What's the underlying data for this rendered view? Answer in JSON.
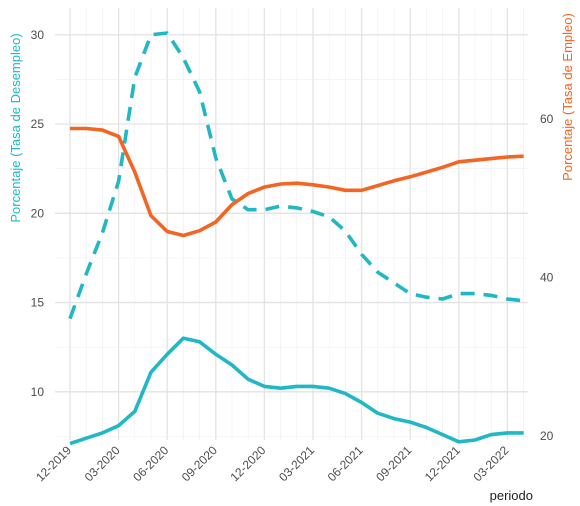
{
  "chart_data": {
    "type": "line",
    "xlabel": "periodo",
    "ylabel_left": "Porcentaje (Tasa de Desempleo)",
    "ylabel_right": "Porcentaje (Tasa de Empleo)",
    "x_ticks": [
      "12-2019",
      "03-2020",
      "06-2020",
      "09-2020",
      "12-2020",
      "03-2021",
      "06-2021",
      "09-2021",
      "12-2021",
      "03-2022"
    ],
    "y_left_ticks": [
      10,
      15,
      20,
      25,
      30
    ],
    "y_right_ticks": [
      20,
      40,
      60
    ],
    "ylim_left": [
      7.3,
      31.5
    ],
    "ylim_right": [
      19.5,
      74
    ],
    "grid": true,
    "colors": {
      "teal": "#1fb8c4",
      "orange": "#f26522"
    },
    "x": [
      "12-2019",
      "01-2020",
      "02-2020",
      "03-2020",
      "04-2020",
      "05-2020",
      "06-2020",
      "07-2020",
      "08-2020",
      "09-2020",
      "10-2020",
      "11-2020",
      "12-2020",
      "01-2021",
      "02-2021",
      "03-2021",
      "04-2021",
      "05-2021",
      "06-2021",
      "07-2021",
      "08-2021",
      "09-2021",
      "10-2021",
      "11-2021",
      "12-2021",
      "01-2022",
      "02-2022",
      "03-2022",
      "04-2022"
    ],
    "series": [
      {
        "axis": "left",
        "style": "dashed",
        "color": "#1fb8c4",
        "values": [
          14.1,
          16.6,
          18.9,
          21.8,
          27.6,
          30.0,
          30.1,
          28.7,
          26.8,
          23.1,
          20.8,
          20.2,
          20.2,
          20.4,
          20.3,
          20.1,
          19.8,
          19.0,
          17.7,
          16.7,
          16.1,
          15.5,
          15.3,
          15.2,
          15.5,
          15.5,
          15.4,
          15.2,
          15.1
        ]
      },
      {
        "axis": "left",
        "style": "solid",
        "color": "#1fb8c4",
        "values": [
          7.1,
          7.4,
          7.7,
          8.1,
          8.9,
          11.1,
          12.1,
          13.0,
          12.8,
          12.1,
          11.5,
          10.7,
          10.3,
          10.2,
          10.3,
          10.3,
          10.2,
          9.9,
          9.4,
          8.8,
          8.5,
          8.3,
          8.0,
          7.6,
          7.2,
          7.3,
          7.6,
          7.7,
          7.7
        ]
      },
      {
        "axis": "right",
        "style": "solid",
        "color": "#f26522",
        "values": [
          58.8,
          58.8,
          58.6,
          57.8,
          53.3,
          47.8,
          45.8,
          45.3,
          45.9,
          47.0,
          49.2,
          50.6,
          51.4,
          51.8,
          51.9,
          51.7,
          51.4,
          51.0,
          51.0,
          51.6,
          52.2,
          52.7,
          53.3,
          53.9,
          54.6,
          54.8,
          55.0,
          55.2,
          55.3
        ]
      }
    ]
  }
}
